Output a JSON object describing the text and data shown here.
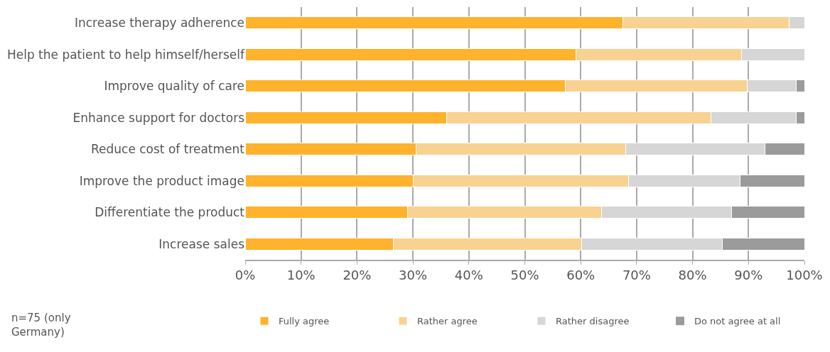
{
  "chart_data": {
    "type": "bar",
    "orientation": "horizontal",
    "stacked": true,
    "categories": [
      "Increase therapy adherence",
      "Help the patient to help himself/herself",
      "Improve quality of care",
      "Enhance support for doctors",
      "Reduce cost of treatment",
      "Improve the product image",
      "Differentiate the product",
      "Increase sales"
    ],
    "series": [
      {
        "name": "Fully agree",
        "color": "#ffb22b",
        "values": [
          67.5,
          59.1,
          57.3,
          36.0,
          30.5,
          30.0,
          29.0,
          26.5
        ]
      },
      {
        "name": "Rather agree",
        "color": "#f8d290",
        "values": [
          29.8,
          29.6,
          32.5,
          47.3,
          37.5,
          38.5,
          34.7,
          33.7
        ]
      },
      {
        "name": "Rather disagree",
        "color": "#d6d6d6",
        "values": [
          2.7,
          11.3,
          8.7,
          15.3,
          25.0,
          20.0,
          23.3,
          25.1
        ]
      },
      {
        "name": "Do not agree at all",
        "color": "#9b9b9b",
        "values": [
          0,
          0,
          1.5,
          1.4,
          7.0,
          11.5,
          13.0,
          14.7
        ]
      }
    ],
    "xlim": [
      0,
      100
    ],
    "xticks": [
      {
        "value": 0,
        "label": "0%"
      },
      {
        "value": 10,
        "label": "10%"
      },
      {
        "value": 20,
        "label": "20%"
      },
      {
        "value": 30,
        "label": "30%"
      },
      {
        "value": 40,
        "label": "40%"
      },
      {
        "value": 50,
        "label": "50%"
      },
      {
        "value": 60,
        "label": "60%"
      },
      {
        "value": 70,
        "label": "70%"
      },
      {
        "value": 80,
        "label": "80%"
      },
      {
        "value": 90,
        "label": "90%"
      },
      {
        "value": 100,
        "label": "100%"
      }
    ],
    "grid": "x",
    "legend": "bottom",
    "annotations": [
      "n=75 (only Germany)"
    ]
  }
}
